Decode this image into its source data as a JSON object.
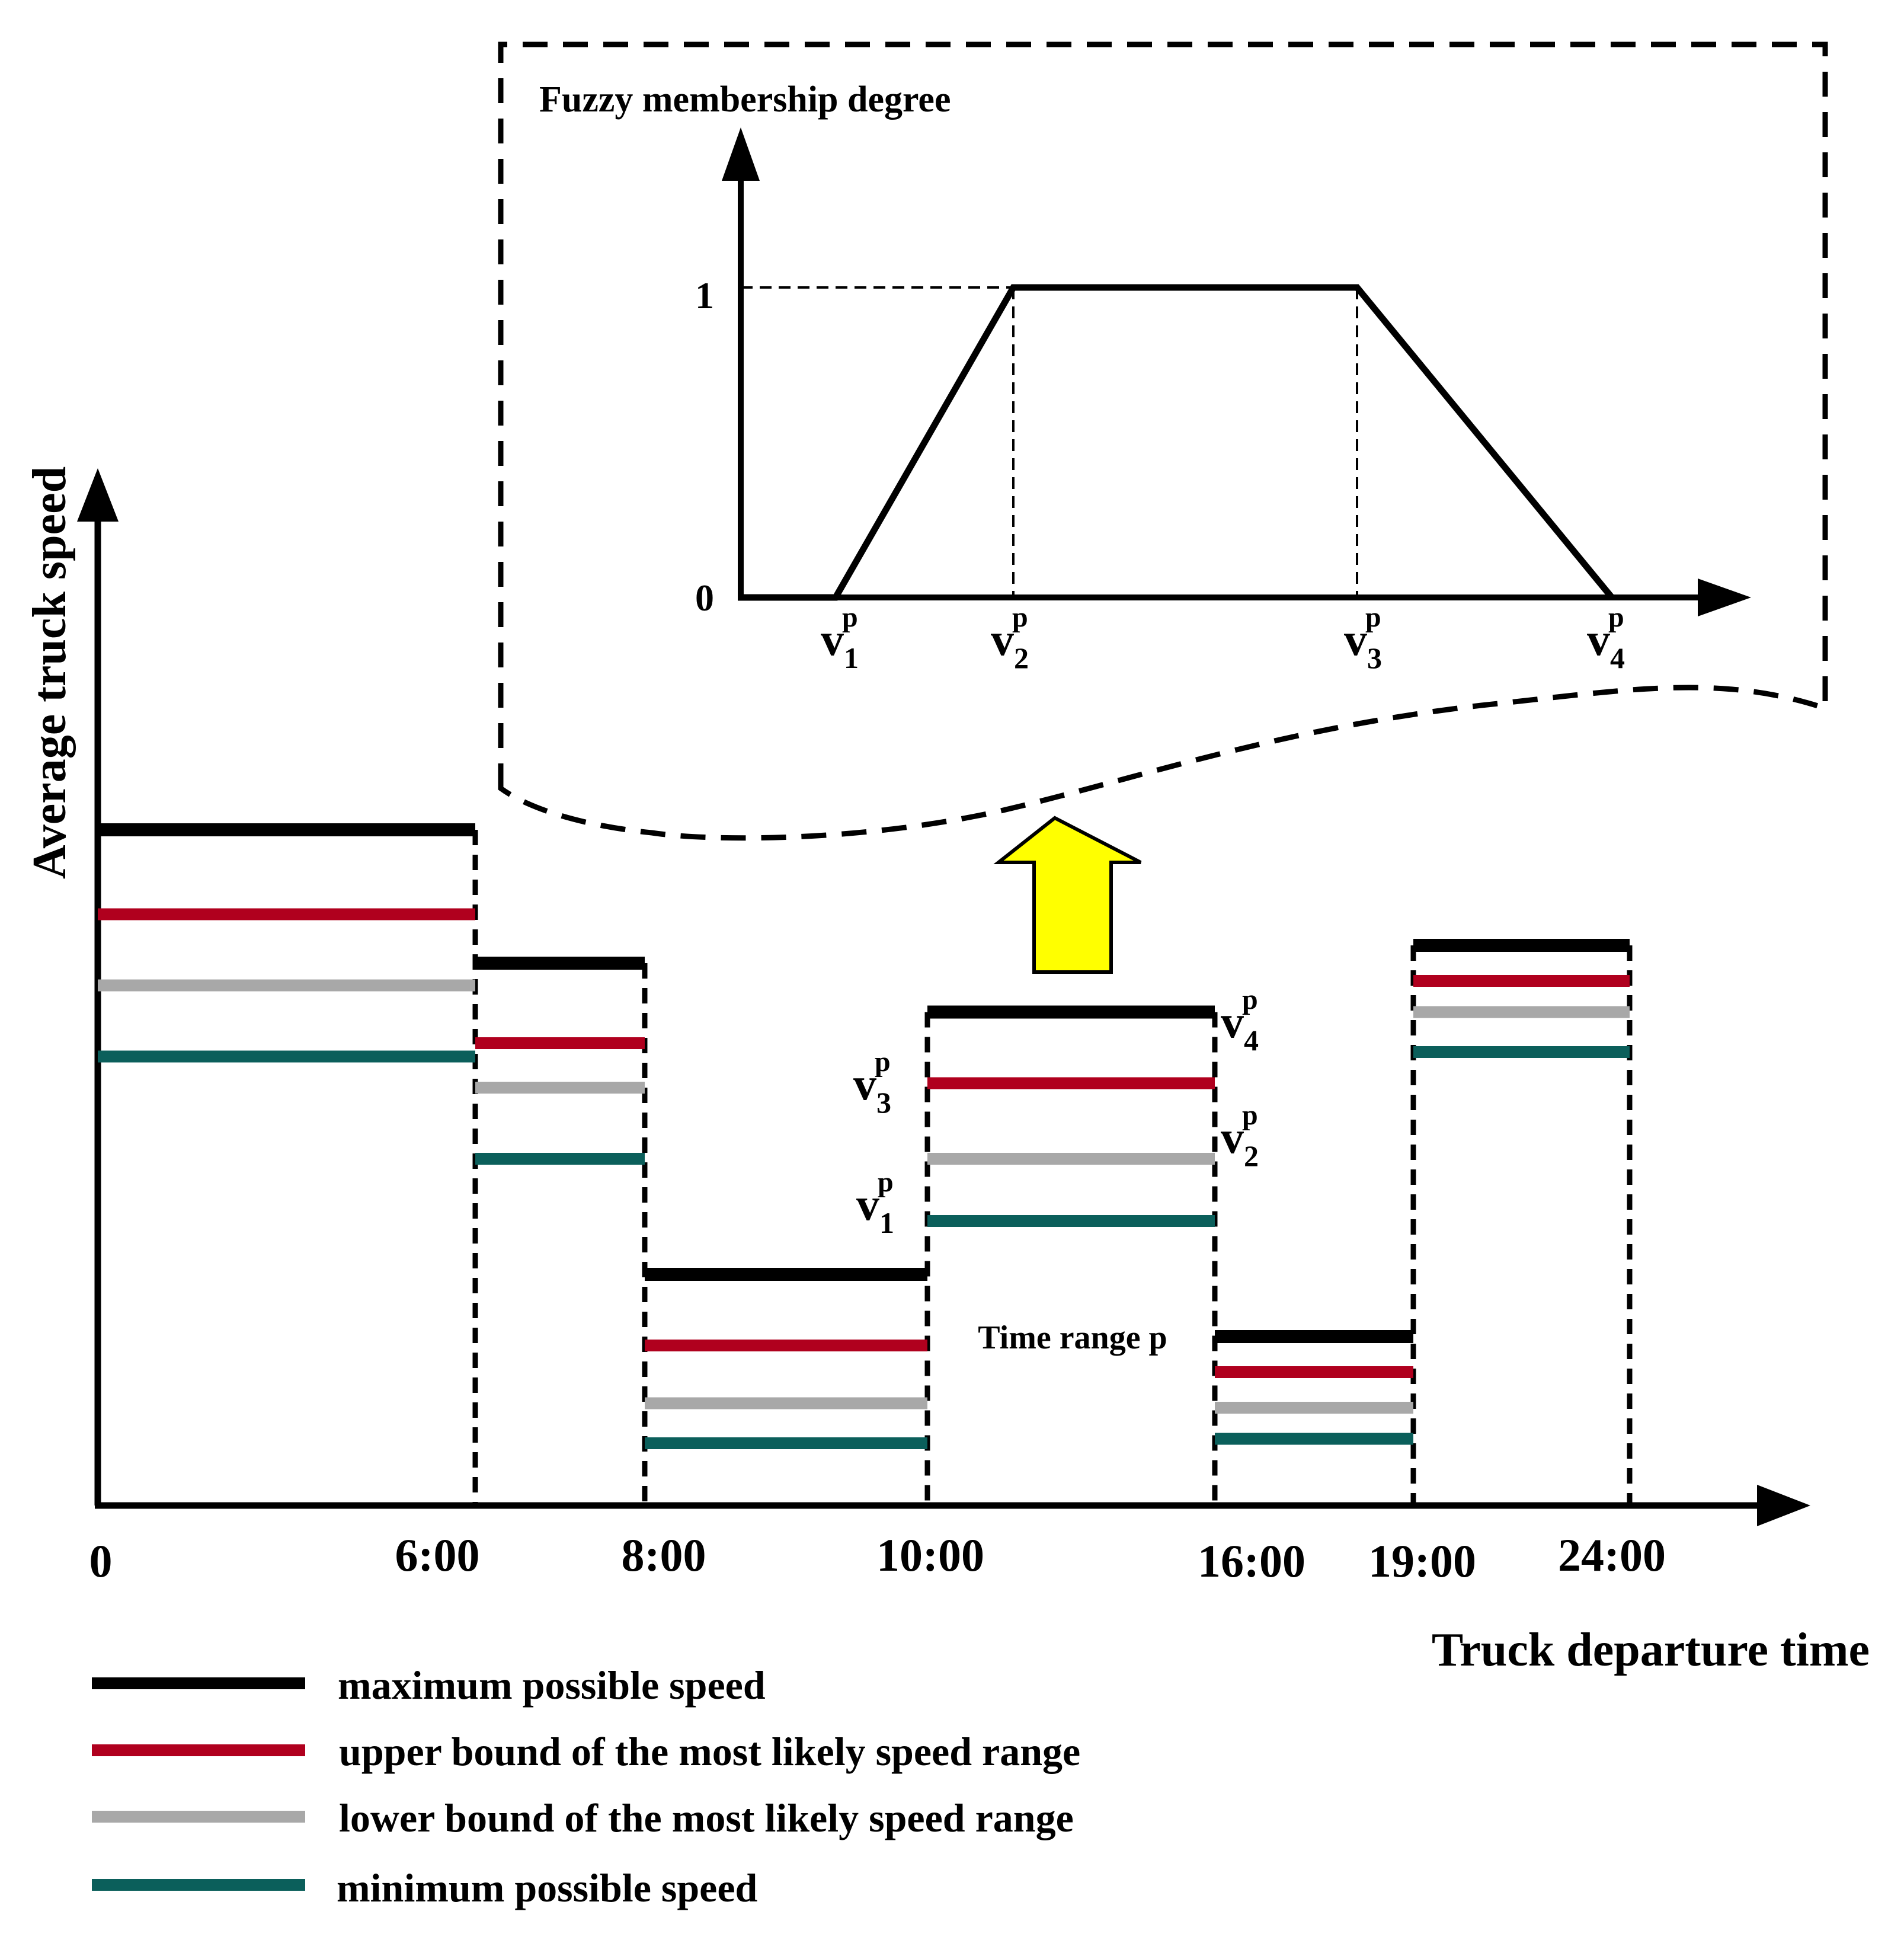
{
  "colors": {
    "max": "#000000",
    "upper": "#b0001e",
    "lower": "#a8a8a8",
    "min": "#0b5f5b",
    "arrow": "#ffff00"
  },
  "main_chart": {
    "y_axis_label": "Average truck speed",
    "x_axis_label": "Truck departure time",
    "x_ticks": [
      "0",
      "6:00",
      "8:00",
      "10:00",
      "16:00",
      "19:00",
      "24:00"
    ],
    "time_range_label": "Time range p",
    "periods": [
      {
        "start": "0",
        "end": "6:00",
        "max": 0.76,
        "upper": 0.665,
        "lower": 0.585,
        "min": 0.505
      },
      {
        "start": "6:00",
        "end": "8:00",
        "max": 0.61,
        "upper": 0.52,
        "lower": 0.47,
        "min": 0.39
      },
      {
        "start": "8:00",
        "end": "10:00",
        "max": 0.26,
        "upper": 0.18,
        "lower": 0.115,
        "min": 0.07
      },
      {
        "start": "10:00",
        "end": "16:00",
        "max": 0.555,
        "upper": 0.475,
        "lower": 0.39,
        "min": 0.32
      },
      {
        "start": "16:00",
        "end": "19:00",
        "max": 0.19,
        "upper": 0.15,
        "lower": 0.11,
        "min": 0.075
      },
      {
        "start": "19:00",
        "end": "24:00",
        "max": 0.63,
        "upper": 0.59,
        "lower": 0.555,
        "min": 0.51
      }
    ],
    "point_labels": {
      "v4": {
        "main": "v",
        "sub": "4",
        "sup": "p"
      },
      "v3": {
        "main": "v",
        "sub": "3",
        "sup": "p"
      },
      "v2": {
        "main": "v",
        "sub": "2",
        "sup": "p"
      },
      "v1": {
        "main": "v",
        "sub": "1",
        "sup": "p"
      }
    }
  },
  "inset_chart": {
    "y_axis_label": "Fuzzy membership degree",
    "y_ticks": [
      "1",
      "0"
    ],
    "x_labels": [
      {
        "main": "v",
        "sub": "1",
        "sup": "p"
      },
      {
        "main": "v",
        "sub": "2",
        "sup": "p"
      },
      {
        "main": "v",
        "sub": "3",
        "sup": "p"
      },
      {
        "main": "v",
        "sub": "4",
        "sup": "p"
      }
    ],
    "membership": [
      0,
      1,
      1,
      0
    ]
  },
  "legend": {
    "items": [
      {
        "key": "max",
        "label": "maximum possible speed"
      },
      {
        "key": "upper",
        "label": "upper bound of the most likely speed range"
      },
      {
        "key": "lower",
        "label": "lower bound of the most likely speed range"
      },
      {
        "key": "min",
        "label": "minimum possible speed"
      }
    ]
  }
}
